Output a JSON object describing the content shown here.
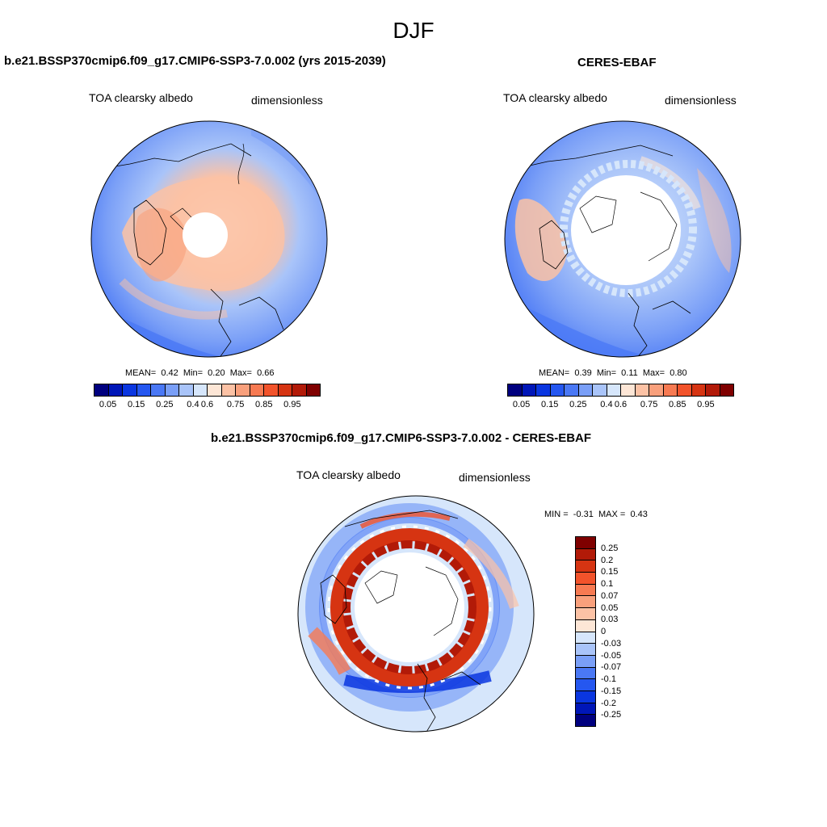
{
  "figure": {
    "season": "DJF"
  },
  "panels": {
    "model": {
      "title": "b.e21.BSSP370cmip6.f09_g17.CMIP6-SSP3-7.0.002 (yrs 2015-2039)",
      "variable": "TOA clearsky albedo",
      "units": "dimensionless",
      "stats": {
        "mean_label": "MEAN=",
        "mean": "0.42",
        "min_label": "Min=",
        "min": "0.20",
        "max_label": "Max=",
        "max": "0.66"
      }
    },
    "obs": {
      "title": "CERES-EBAF",
      "variable": "TOA clearsky albedo",
      "units": "dimensionless",
      "stats": {
        "mean_label": "MEAN=",
        "mean": "0.39",
        "min_label": "Min=",
        "min": "0.11",
        "max_label": "Max=",
        "max": "0.80"
      }
    },
    "diff": {
      "title": "b.e21.BSSP370cmip6.f09_g17.CMIP6-SSP3-7.0.002 - CERES-EBAF",
      "variable": "TOA clearsky albedo",
      "units": "dimensionless",
      "stats": {
        "min_label": "MIN =",
        "min": "-0.31",
        "max_label": "MAX =",
        "max": "0.43"
      }
    }
  },
  "colorbars": {
    "abs": {
      "colors": [
        "#00007f",
        "#0016b8",
        "#0a36e0",
        "#2557f0",
        "#4a78f5",
        "#7a9ff7",
        "#a9c4f9",
        "#d6e6fb",
        "#fde6d6",
        "#fcc2a5",
        "#f9a07c",
        "#f77a52",
        "#f2532b",
        "#d63412",
        "#b21a08",
        "#7f0000"
      ],
      "ticks": [
        "0.05",
        "0.15",
        "0.25",
        "0.4",
        "0.6",
        "0.75",
        "0.85",
        "0.95"
      ]
    },
    "diff": {
      "colors": [
        "#7f0000",
        "#b21a08",
        "#d63412",
        "#f2532b",
        "#f77a52",
        "#f9a07c",
        "#fcc2a5",
        "#fde6d6",
        "#d6e6fb",
        "#a9c4f9",
        "#7a9ff7",
        "#4a78f5",
        "#2557f0",
        "#0a36e0",
        "#0016b8",
        "#00007f"
      ],
      "ticks": [
        "0.25",
        "0.2",
        "0.15",
        "0.1",
        "0.07",
        "0.05",
        "0.03",
        "0",
        "-0.03",
        "-0.05",
        "-0.07",
        "-0.1",
        "-0.15",
        "-0.2",
        "-0.25"
      ]
    }
  },
  "chart_data": [
    {
      "type": "heatmap",
      "projection": "north-polar-stereographic",
      "title": "b.e21.BSSP370cmip6.f09_g17.CMIP6-SSP3-7.0.002 (yrs 2015-2039)",
      "field": "TOA clearsky albedo",
      "units": "dimensionless",
      "mean": 0.42,
      "min": 0.2,
      "max": 0.66,
      "levels": [
        0.05,
        0.1,
        0.15,
        0.2,
        0.25,
        0.3,
        0.4,
        0.5,
        0.6,
        0.65,
        0.7,
        0.75,
        0.8,
        0.85,
        0.9,
        0.95
      ]
    },
    {
      "type": "heatmap",
      "projection": "north-polar-stereographic",
      "title": "CERES-EBAF",
      "field": "TOA clearsky albedo",
      "units": "dimensionless",
      "mean": 0.39,
      "min": 0.11,
      "max": 0.8,
      "levels": [
        0.05,
        0.1,
        0.15,
        0.2,
        0.25,
        0.3,
        0.4,
        0.5,
        0.6,
        0.65,
        0.7,
        0.75,
        0.8,
        0.85,
        0.9,
        0.95
      ]
    },
    {
      "type": "heatmap",
      "projection": "north-polar-stereographic",
      "title": "b.e21.BSSP370cmip6.f09_g17.CMIP6-SSP3-7.0.002 - CERES-EBAF",
      "field": "TOA clearsky albedo",
      "units": "dimensionless",
      "min": -0.31,
      "max": 0.43,
      "levels": [
        -0.25,
        -0.2,
        -0.15,
        -0.1,
        -0.07,
        -0.05,
        -0.03,
        0,
        0.03,
        0.05,
        0.07,
        0.1,
        0.15,
        0.2,
        0.25
      ]
    }
  ]
}
